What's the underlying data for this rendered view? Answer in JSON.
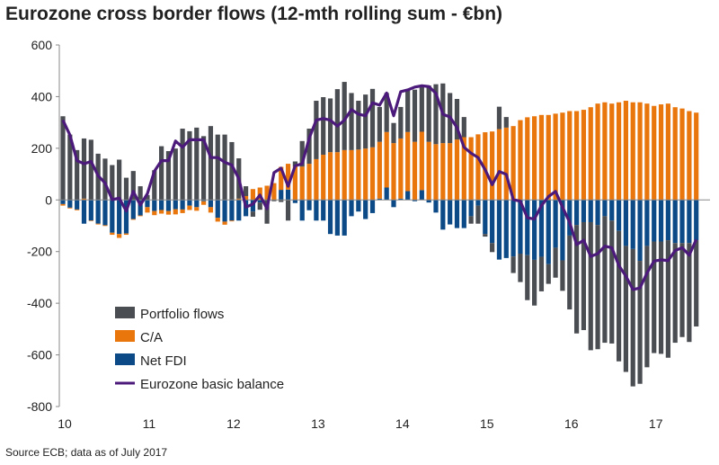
{
  "title": "Eurozone cross border flows (12-mth rolling sum - €bn)",
  "source": "Source ECB; data as of July 2017",
  "chart_data": {
    "type": "bar",
    "stacked": true,
    "title": "Eurozone cross border flows (12-mth rolling sum - €bn)",
    "xlabel": "",
    "ylabel": "",
    "ylim": [
      -800,
      600
    ],
    "yticks": [
      "600",
      "400",
      "200",
      "0",
      "-200",
      "-400",
      "-600",
      "-800"
    ],
    "ytick_values": [
      600,
      400,
      200,
      0,
      -200,
      -400,
      -600,
      -800
    ],
    "xtick_labels": [
      "10",
      "11",
      "12",
      "13",
      "14",
      "15",
      "16",
      "17"
    ],
    "x_start": "2010-01",
    "x_end": "2017-07",
    "frequency": "monthly",
    "legend_position": "bottom-left",
    "colors": {
      "portfolio": "#4a4d52",
      "ca": "#e8760c",
      "fdi": "#0b4a86",
      "balance": "#4b1a7a"
    },
    "series": [
      {
        "name": "Portfolio flows",
        "key": "portfolio",
        "kind": "bar",
        "values": [
          324,
          253,
          193,
          233,
          233,
          179,
          160,
          135,
          156,
          86,
          112,
          53,
          19,
          115,
          208,
          189,
          199,
          276,
          266,
          280,
          247,
          286,
          253,
          253,
          224,
          156,
          38,
          -20,
          -28,
          -92,
          -5,
          -8,
          -80,
          20,
          99,
          136,
          226,
          223,
          208,
          244,
          264,
          221,
          189,
          209,
          226,
          135,
          151,
          78,
          122,
          163,
          202,
          178,
          218,
          232,
          231,
          194,
          157,
          78,
          -29,
          -70,
          -10,
          -35,
          87,
          41,
          -64,
          -110,
          -174,
          -177,
          -134,
          -76,
          -116,
          -118,
          -286,
          -420,
          -418,
          -496,
          -481,
          -490,
          -476,
          -505,
          -488,
          -532,
          -476,
          -470,
          -432,
          -435,
          -455,
          -386,
          -364,
          -383,
          -334
        ]
      },
      {
        "name": "C/A",
        "key": "ca",
        "kind": "bar",
        "values": [
          -6,
          -3,
          -3,
          5,
          -2,
          -3,
          -3,
          -8,
          -15,
          -5,
          -3,
          -3,
          -21,
          -16,
          -14,
          -14,
          -20,
          -14,
          -17,
          -14,
          -14,
          -21,
          -15,
          -12,
          -3,
          5,
          15,
          42,
          48,
          55,
          65,
          89,
          100,
          129,
          129,
          140,
          158,
          175,
          185,
          185,
          193,
          193,
          195,
          199,
          204,
          220,
          215,
          220,
          233,
          229,
          225,
          226,
          225,
          216,
          220,
          220,
          234,
          243,
          243,
          254,
          262,
          265,
          274,
          280,
          286,
          309,
          320,
          324,
          329,
          329,
          334,
          338,
          344,
          344,
          349,
          359,
          373,
          378,
          373,
          378,
          384,
          378,
          378,
          373,
          364,
          370,
          373,
          359,
          354,
          344,
          338
        ]
      },
      {
        "name": "Net FDI",
        "key": "fdi",
        "kind": "bar",
        "values": [
          -16,
          -30,
          -37,
          -92,
          -80,
          -92,
          -98,
          -127,
          -132,
          -130,
          -74,
          -60,
          -28,
          -43,
          -39,
          -43,
          -36,
          -37,
          -22,
          -28,
          -5,
          -28,
          -69,
          -84,
          -80,
          -80,
          -63,
          -45,
          -10,
          0,
          0,
          39,
          40,
          -12,
          -80,
          -40,
          -80,
          -80,
          -132,
          -138,
          -138,
          -63,
          -45,
          -74,
          -51,
          5,
          48,
          -28,
          5,
          34,
          -5,
          38,
          -10,
          -49,
          -115,
          -95,
          -109,
          -109,
          -63,
          -22,
          -132,
          -167,
          -231,
          -225,
          -219,
          -208,
          -214,
          -232,
          -220,
          -249,
          -185,
          -234,
          -138,
          -97,
          -86,
          -86,
          -97,
          -63,
          -80,
          -120,
          -178,
          -190,
          -236,
          -178,
          -161,
          -161,
          -156,
          -167,
          -167,
          -167,
          -156
        ]
      },
      {
        "name": "Eurozone basic balance",
        "key": "balance",
        "kind": "line",
        "values": [
          309,
          251,
          152,
          140,
          149,
          94,
          65,
          1,
          7,
          -43,
          33,
          -20,
          24,
          111,
          152,
          152,
          228,
          204,
          233,
          233,
          233,
          164,
          164,
          146,
          135,
          82,
          -28,
          -16,
          19,
          -34,
          106,
          123,
          53,
          132,
          140,
          239,
          309,
          315,
          309,
          286,
          309,
          350,
          332,
          326,
          376,
          367,
          414,
          326,
          419,
          426,
          437,
          442,
          439,
          413,
          332,
          321,
          280,
          204,
          181,
          164,
          117,
          59,
          110,
          99,
          1,
          -5,
          -69,
          -74,
          -22,
          13,
          33,
          -28,
          -86,
          -173,
          -156,
          -219,
          -208,
          -179,
          -185,
          -254,
          -295,
          -347,
          -341,
          -283,
          -237,
          -232,
          -235,
          -196,
          -185,
          -214,
          -153
        ]
      }
    ]
  }
}
